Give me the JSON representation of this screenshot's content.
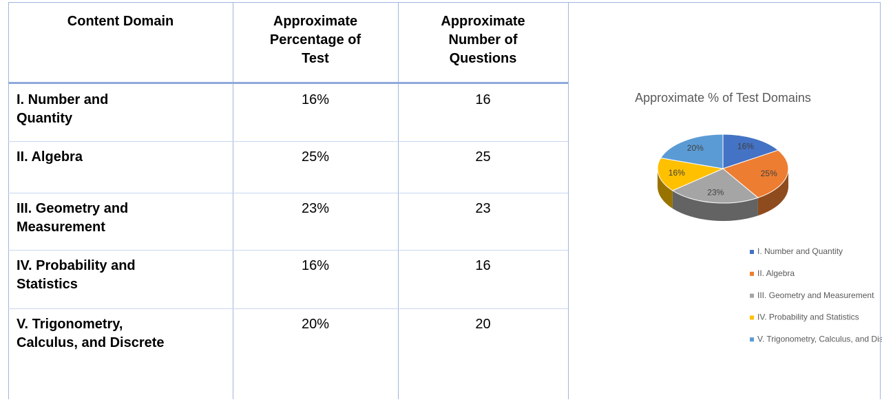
{
  "table": {
    "headers": [
      [
        "Content Domain"
      ],
      [
        "Approximate",
        "Percentage of",
        "Test"
      ],
      [
        "Approximate",
        "Number of",
        "Questions"
      ]
    ],
    "rows": [
      {
        "label": [
          "I. Number and",
          "Quantity"
        ],
        "percent": "16%",
        "questions": "16"
      },
      {
        "label": [
          "II. Algebra"
        ],
        "percent": "25%",
        "questions": "25"
      },
      {
        "label": [
          "III. Geometry and",
          "Measurement"
        ],
        "percent": "23%",
        "questions": "23"
      },
      {
        "label": [
          "IV. Probability and",
          "Statistics"
        ],
        "percent": "16%",
        "questions": "16"
      },
      {
        "label": [
          "V. Trigonometry,",
          "Calculus, and Discrete"
        ],
        "percent": "20%",
        "questions": "20"
      }
    ]
  },
  "chart_data": {
    "type": "pie",
    "title": "Approximate % of Test Domains",
    "categories": [
      "I. Number and Quantity",
      "II. Algebra",
      "III. Geometry and Measurement",
      "IV. Probability and Statistics",
      "V. Trigonometry, Calculus, and Discrete"
    ],
    "values": [
      16,
      25,
      23,
      16,
      20
    ],
    "value_labels": [
      "16%",
      "25%",
      "23%",
      "16%",
      "20%"
    ],
    "colors": [
      "#4472c4",
      "#ed7d31",
      "#a5a5a5",
      "#ffc000",
      "#5b9bd5"
    ],
    "legend": "bottom"
  }
}
